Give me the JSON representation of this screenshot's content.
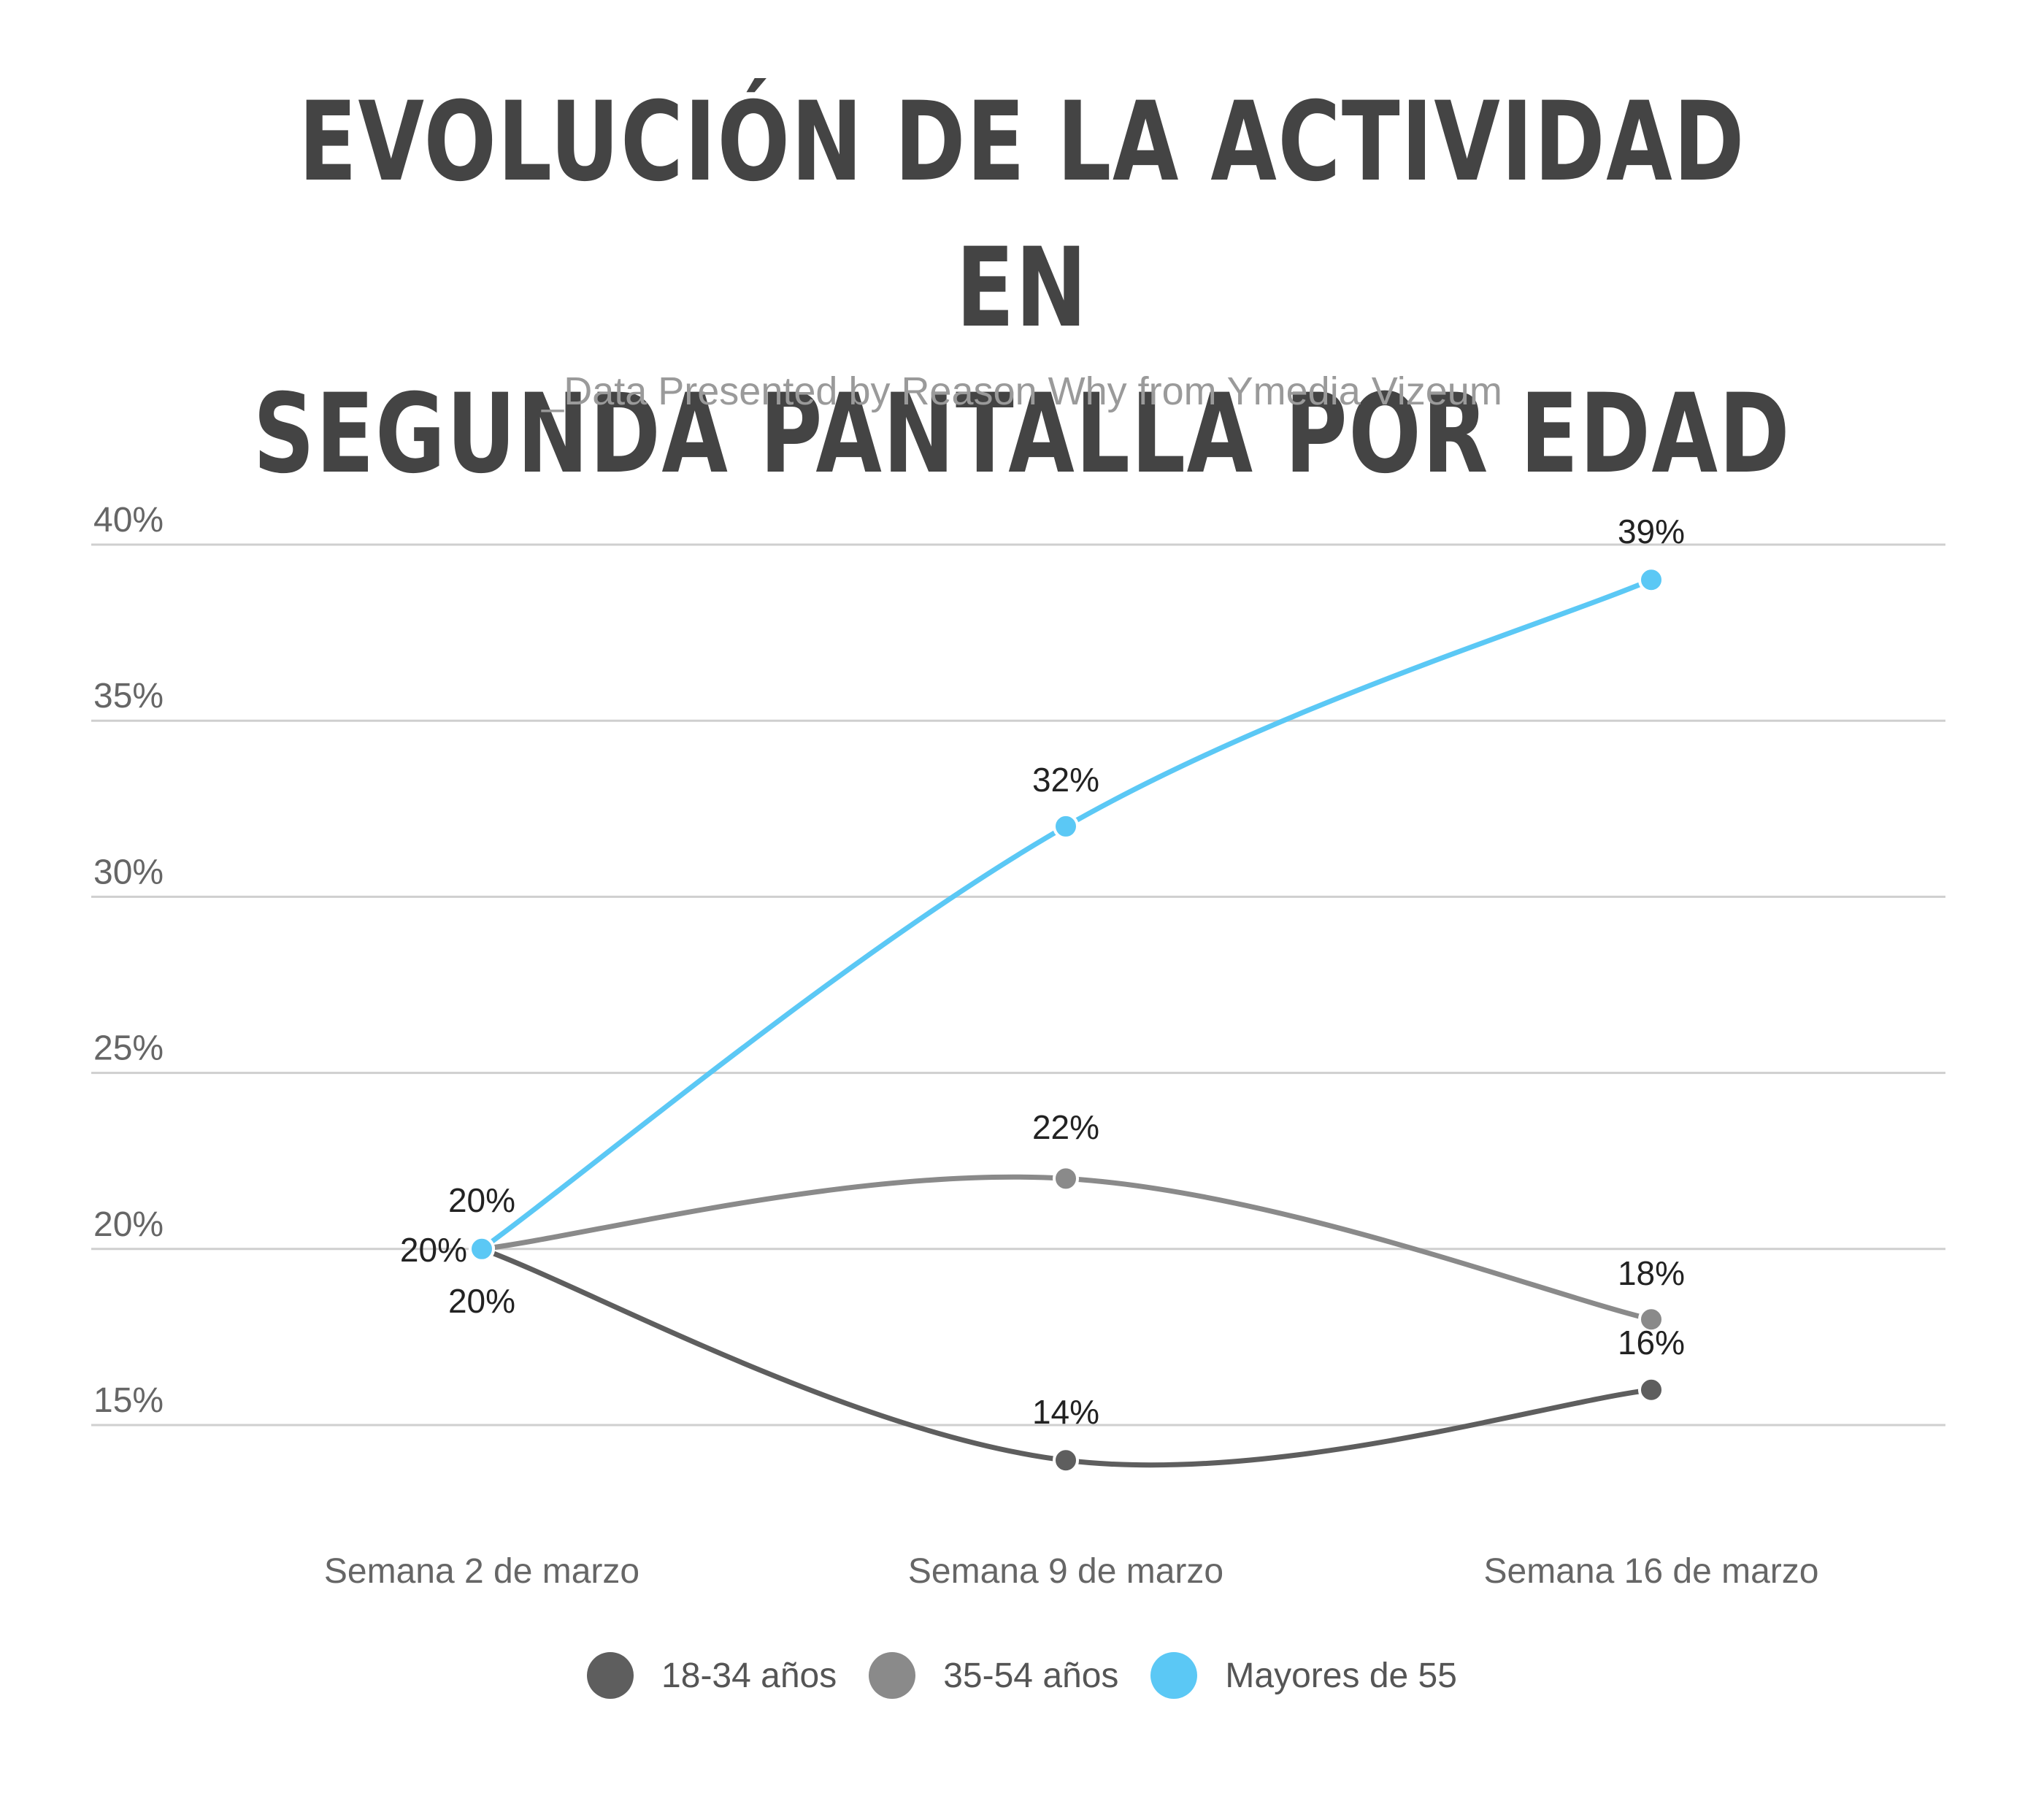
{
  "header": {
    "title_line1": "EVOLUCIÓN DE LA ACTIVIDAD EN",
    "title_line2": "SEGUNDA PANTALLA POR EDAD",
    "subtitle": "_Data Presented by Reason Why from Ymedia Vizeum"
  },
  "colors": {
    "grid": "#cfcfcf",
    "axis_text": "#666666",
    "label_text": "#222222",
    "series_18_34": "#5e5e5e",
    "series_35_54": "#8a8a8a",
    "series_55": "#5bc8f5"
  },
  "legend": {
    "items": [
      {
        "label": "18-34 años",
        "color": "#5e5e5e"
      },
      {
        "label": "35-54 años",
        "color": "#8a8a8a"
      },
      {
        "label": "Mayores de 55",
        "color": "#5bc8f5"
      }
    ]
  },
  "chart_data": {
    "type": "line",
    "title": "EVOLUCIÓN DE LA ACTIVIDAD EN SEGUNDA PANTALLA POR EDAD",
    "subtitle": "_Data Presented by Reason Why from Ymedia Vizeum",
    "categories": [
      "Semana 2 de marzo",
      "Semana 9 de marzo",
      "Semana 16 de marzo"
    ],
    "y_ticks": [
      "15%",
      "20%",
      "25%",
      "30%",
      "35%",
      "40%"
    ],
    "ylim": [
      15,
      40
    ],
    "grid": true,
    "legend_position": "bottom",
    "series": [
      {
        "name": "18-34 años",
        "values": [
          20,
          14,
          16
        ],
        "labels": [
          "20%",
          "14%",
          "16%"
        ],
        "color": "#5e5e5e"
      },
      {
        "name": "35-54 años",
        "values": [
          20,
          22,
          18
        ],
        "labels": [
          "20%",
          "22%",
          "18%"
        ],
        "color": "#8a8a8a"
      },
      {
        "name": "Mayores de 55",
        "values": [
          20,
          32,
          39
        ],
        "labels": [
          "20%",
          "32%",
          "39%"
        ],
        "color": "#5bc8f5"
      }
    ]
  }
}
